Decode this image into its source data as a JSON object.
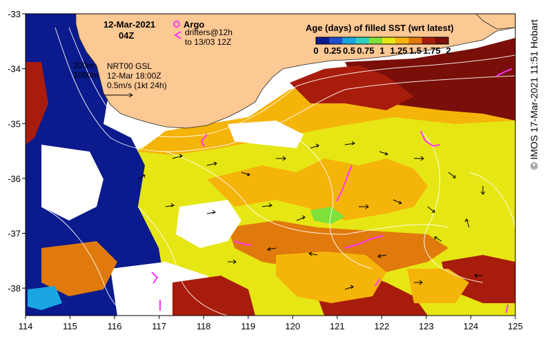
{
  "title": {
    "date": "12-Mar-2021",
    "time": "04Z"
  },
  "legend": {
    "argo_label": "Argo",
    "drifters_label": "drifters@12h",
    "drifters_sub": "to 13/03 12Z",
    "colorbar_title": "Age (days) of filled SST (wrt latest)",
    "colorbar_ticks": [
      "0",
      "0.25",
      "0.5",
      "0.75",
      "1",
      "1.25",
      "1.5",
      "1.75",
      "2"
    ],
    "colorbar_colors": [
      "#0b1a8c",
      "#1f4fd1",
      "#1aa6e0",
      "#2fd0c0",
      "#7ee03a",
      "#e6e614",
      "#f5b40a",
      "#e07a0c",
      "#a81c0c",
      "#7a0f0a"
    ],
    "bathy_200": "200m",
    "bathy_1000": "1000m",
    "current_source": "NRT00 GSL",
    "current_time": "12-Mar 18:00Z",
    "scale_label": "0.5m/s (1kt 24h)"
  },
  "credit": "© IMOS 17-Mar-2021 11:51 Hobart",
  "map_data": {
    "lon_range": [
      114,
      125
    ],
    "lat_range": [
      -38.5,
      -33
    ],
    "lon_ticks": [
      "114",
      "115",
      "116",
      "117",
      "118",
      "119",
      "120",
      "121",
      "122",
      "123",
      "124",
      "125"
    ],
    "lat_ticks": [
      "-33",
      "-34",
      "-35",
      "-36",
      "-37",
      "-38"
    ],
    "land_color": "#fcc894",
    "colors": {
      "navy": "#0b1a8c",
      "blue": "#1f4fd1",
      "cyan": "#1aa6e0",
      "green": "#7ee03a",
      "yellow": "#e6e614",
      "orange": "#f5b40a",
      "dark_orange": "#e07a0c",
      "red": "#a81c0c",
      "maroon": "#7a0f0a",
      "drifter": "#ff33ff"
    }
  }
}
